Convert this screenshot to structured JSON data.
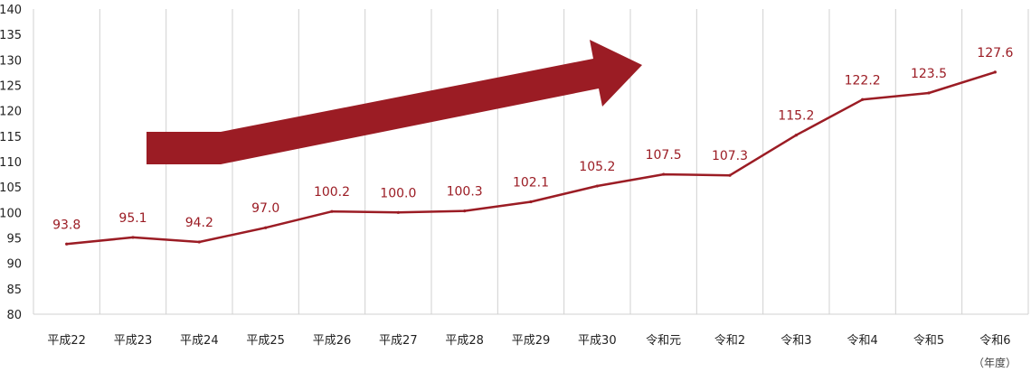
{
  "chart_data": {
    "type": "line",
    "categories": [
      "平成22",
      "平成23",
      "平成24",
      "平成25",
      "平成26",
      "平成27",
      "平成28",
      "平成29",
      "平成30",
      "令和元",
      "令和2",
      "令和3",
      "令和4",
      "令和5",
      "令和6"
    ],
    "series": [
      {
        "values": [
          93.8,
          95.1,
          94.2,
          97.0,
          100.2,
          100.0,
          100.3,
          102.1,
          105.2,
          107.5,
          107.3,
          115.2,
          122.2,
          123.5,
          127.6
        ]
      }
    ],
    "data_labels": [
      "93.8",
      "95.1",
      "94.2",
      "97.0",
      "100.2",
      "100.0",
      "100.3",
      "102.1",
      "105.2",
      "107.5",
      "107.3",
      "115.2",
      "122.2",
      "123.5",
      "127.6"
    ],
    "ylim": [
      80,
      140
    ],
    "yticks": [
      80,
      85,
      90,
      95,
      100,
      105,
      110,
      115,
      120,
      125,
      130,
      135,
      140
    ],
    "x_unit": "（年度）",
    "grid": "vertical",
    "line_color": "#9b1c24",
    "arrow_color": "#9b1c24"
  }
}
